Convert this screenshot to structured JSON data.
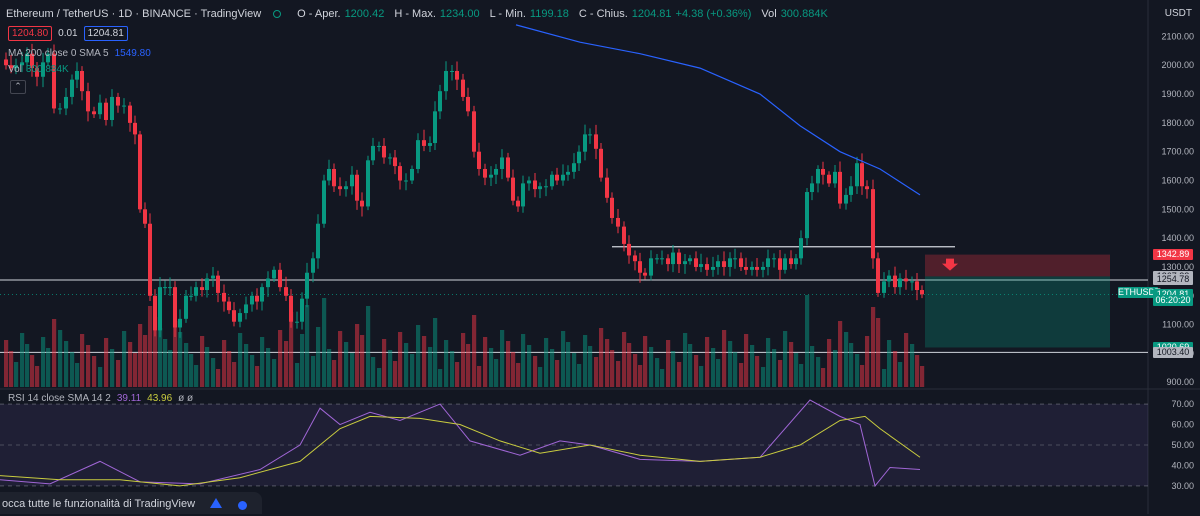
{
  "header": {
    "symbol": "Ethereum / TetherUS · 1D · BINANCE · TradingView",
    "open_label": "O - Aper.",
    "open": "1200.42",
    "high_label": "H - Max.",
    "high": "1234.00",
    "low_label": "L - Min.",
    "low": "1199.18",
    "close_label": "C - Chius.",
    "close": "1204.81",
    "change": "+4.38 (+0.36%)",
    "vol_label": "Vol",
    "vol": "300.884K",
    "bid": "1204.80",
    "spread": "0.01",
    "ask": "1204.81",
    "currency": "USDT"
  },
  "indicators": {
    "ma_label": "MA 200 close 0 SMA 5",
    "ma_value": "1549.80",
    "vol_label": "Vol",
    "vol_value": "300.884K",
    "rsi_label": "RSI 14 close SMA 14 2",
    "rsi_value": "39.11",
    "rsi_sma": "43.96",
    "rsi_extra": "ø ø"
  },
  "price_tags": [
    {
      "label": "1342.89",
      "price": 1342.89,
      "bg": "#f23645",
      "fg": "#ffffff"
    },
    {
      "label": "1267.22",
      "price": 1267.22,
      "bg": "#b2b5be",
      "fg": "#131722"
    },
    {
      "label": "1254.78",
      "price": 1254.78,
      "bg": "#b2b5be",
      "fg": "#131722"
    },
    {
      "label": "ETHUSDT",
      "price": 1210.0,
      "bg": "#089981",
      "fg": "#ffffff",
      "left": true
    },
    {
      "label": "1204.81",
      "price": 1204.81,
      "bg": "#089981",
      "fg": "#ffffff"
    },
    {
      "label": "06:20:20",
      "price": 1184.0,
      "bg": "#089981",
      "fg": "#ffffff"
    },
    {
      "label": "1020.69",
      "price": 1020.69,
      "bg": "#089981",
      "fg": "#ffffff"
    },
    {
      "label": "1003.40",
      "price": 1003.4,
      "bg": "#b2b5be",
      "fg": "#131722"
    }
  ],
  "banner": {
    "text": "occa tutte le funzionalità di TradingView"
  },
  "chart_data": {
    "type": "candlestick",
    "y_ticks": [
      "2100.00",
      "2000.00",
      "1900.00",
      "1800.00",
      "1700.00",
      "1600.00",
      "1500.00",
      "1400.00",
      "1300.00",
      "1200.00",
      "1100.00",
      "1000.00",
      "900.00"
    ],
    "ylim": [
      880,
      2150
    ],
    "rsi_ticks": [
      "70.00",
      "60.00",
      "50.00",
      "40.00",
      "30.00"
    ],
    "rsi_ylim": [
      28,
      72
    ],
    "price_series": [
      [
        0,
        2020
      ],
      [
        6,
        2000
      ],
      [
        11,
        1990
      ],
      [
        16,
        2000
      ],
      [
        22,
        2010
      ],
      [
        27,
        2040
      ],
      [
        32,
        1990
      ],
      [
        37,
        1960
      ],
      [
        43,
        2010
      ],
      [
        48,
        2040
      ],
      [
        54,
        1850
      ],
      [
        60,
        1850
      ],
      [
        66,
        1890
      ],
      [
        72,
        1950
      ],
      [
        77,
        1980
      ],
      [
        82,
        1910
      ],
      [
        88,
        1840
      ],
      [
        94,
        1830
      ],
      [
        100,
        1870
      ],
      [
        106,
        1810
      ],
      [
        112,
        1890
      ],
      [
        118,
        1860
      ],
      [
        124,
        1860
      ],
      [
        130,
        1800
      ],
      [
        135,
        1760
      ],
      [
        140,
        1500
      ],
      [
        145,
        1450
      ],
      [
        150,
        1200
      ],
      [
        155,
        1080
      ],
      [
        160,
        1230
      ],
      [
        165,
        1230
      ],
      [
        170,
        1230
      ],
      [
        175,
        1090
      ],
      [
        180,
        1120
      ],
      [
        186,
        1200
      ],
      [
        191,
        1200
      ],
      [
        196,
        1230
      ],
      [
        202,
        1220
      ],
      [
        207,
        1260
      ],
      [
        213,
        1270
      ],
      [
        218,
        1210
      ],
      [
        224,
        1180
      ],
      [
        229,
        1150
      ],
      [
        234,
        1110
      ],
      [
        240,
        1140
      ],
      [
        246,
        1170
      ],
      [
        252,
        1200
      ],
      [
        257,
        1180
      ],
      [
        262,
        1230
      ],
      [
        268,
        1260
      ],
      [
        274,
        1290
      ],
      [
        280,
        1230
      ],
      [
        286,
        1200
      ],
      [
        291,
        1110
      ],
      [
        297,
        1110
      ],
      [
        302,
        1190
      ],
      [
        307,
        1280
      ],
      [
        313,
        1330
      ],
      [
        318,
        1450
      ],
      [
        324,
        1600
      ],
      [
        329,
        1640
      ],
      [
        334,
        1580
      ],
      [
        340,
        1570
      ],
      [
        346,
        1580
      ],
      [
        352,
        1620
      ],
      [
        357,
        1530
      ],
      [
        362,
        1510
      ],
      [
        368,
        1670
      ],
      [
        373,
        1720
      ],
      [
        379,
        1720
      ],
      [
        384,
        1680
      ],
      [
        390,
        1680
      ],
      [
        395,
        1650
      ],
      [
        400,
        1600
      ],
      [
        406,
        1600
      ],
      [
        412,
        1640
      ],
      [
        418,
        1740
      ],
      [
        424,
        1720
      ],
      [
        430,
        1730
      ],
      [
        435,
        1840
      ],
      [
        440,
        1910
      ],
      [
        446,
        1980
      ],
      [
        452,
        1980
      ],
      [
        457,
        1950
      ],
      [
        463,
        1890
      ],
      [
        468,
        1840
      ],
      [
        474,
        1700
      ],
      [
        479,
        1640
      ],
      [
        485,
        1610
      ],
      [
        491,
        1620
      ],
      [
        496,
        1640
      ],
      [
        502,
        1680
      ],
      [
        508,
        1610
      ],
      [
        513,
        1530
      ],
      [
        518,
        1510
      ],
      [
        523,
        1590
      ],
      [
        529,
        1600
      ],
      [
        535,
        1570
      ],
      [
        540,
        1580
      ],
      [
        546,
        1580
      ],
      [
        552,
        1620
      ],
      [
        557,
        1600
      ],
      [
        563,
        1620
      ],
      [
        568,
        1630
      ],
      [
        574,
        1660
      ],
      [
        579,
        1700
      ],
      [
        585,
        1760
      ],
      [
        590,
        1760
      ],
      [
        596,
        1710
      ],
      [
        601,
        1610
      ],
      [
        607,
        1540
      ],
      [
        612,
        1470
      ],
      [
        618,
        1440
      ],
      [
        624,
        1380
      ],
      [
        629,
        1340
      ],
      [
        635,
        1320
      ],
      [
        640,
        1280
      ],
      [
        645,
        1270
      ],
      [
        651,
        1330
      ],
      [
        657,
        1330
      ],
      [
        662,
        1330
      ],
      [
        668,
        1310
      ],
      [
        673,
        1350
      ],
      [
        679,
        1310
      ],
      [
        685,
        1320
      ],
      [
        690,
        1330
      ],
      [
        696,
        1300
      ],
      [
        701,
        1310
      ],
      [
        707,
        1290
      ],
      [
        713,
        1300
      ],
      [
        718,
        1320
      ],
      [
        724,
        1300
      ],
      [
        730,
        1330
      ],
      [
        735,
        1330
      ],
      [
        741,
        1300
      ],
      [
        746,
        1290
      ],
      [
        752,
        1300
      ],
      [
        757,
        1290
      ],
      [
        763,
        1300
      ],
      [
        768,
        1330
      ],
      [
        774,
        1330
      ],
      [
        780,
        1290
      ],
      [
        785,
        1330
      ],
      [
        791,
        1310
      ],
      [
        796,
        1330
      ],
      [
        801,
        1400
      ],
      [
        807,
        1560
      ],
      [
        812,
        1590
      ],
      [
        818,
        1640
      ],
      [
        823,
        1620
      ],
      [
        829,
        1590
      ],
      [
        835,
        1630
      ],
      [
        840,
        1520
      ],
      [
        846,
        1550
      ],
      [
        851,
        1580
      ],
      [
        857,
        1660
      ],
      [
        862,
        1580
      ],
      [
        867,
        1570
      ],
      [
        873,
        1330
      ],
      [
        878,
        1210
      ],
      [
        884,
        1250
      ],
      [
        889,
        1270
      ],
      [
        895,
        1230
      ],
      [
        900,
        1260
      ],
      [
        906,
        1250
      ],
      [
        912,
        1250
      ],
      [
        917,
        1220
      ],
      [
        922,
        1205
      ]
    ],
    "ma200_series": [
      [
        516,
        2140
      ],
      [
        580,
        2080
      ],
      [
        640,
        2040
      ],
      [
        700,
        1990
      ],
      [
        760,
        1900
      ],
      [
        800,
        1790
      ],
      [
        840,
        1700
      ],
      [
        880,
        1640
      ],
      [
        920,
        1550
      ]
    ],
    "rsi_series": [
      [
        0,
        33
      ],
      [
        50,
        31
      ],
      [
        100,
        42
      ],
      [
        140,
        32
      ],
      [
        200,
        31
      ],
      [
        260,
        38
      ],
      [
        300,
        50
      ],
      [
        320,
        68
      ],
      [
        340,
        60
      ],
      [
        370,
        66
      ],
      [
        400,
        62
      ],
      [
        440,
        70
      ],
      [
        470,
        52
      ],
      [
        520,
        45
      ],
      [
        560,
        52
      ],
      [
        590,
        50
      ],
      [
        640,
        43
      ],
      [
        700,
        42
      ],
      [
        760,
        44
      ],
      [
        810,
        72
      ],
      [
        840,
        64
      ],
      [
        860,
        60
      ],
      [
        875,
        30
      ],
      [
        890,
        39
      ],
      [
        920,
        38
      ]
    ],
    "rsi_sma_series": [
      [
        0,
        35
      ],
      [
        60,
        33
      ],
      [
        120,
        33
      ],
      [
        180,
        30
      ],
      [
        240,
        34
      ],
      [
        300,
        42
      ],
      [
        340,
        58
      ],
      [
        370,
        64
      ],
      [
        420,
        63
      ],
      [
        460,
        60
      ],
      [
        500,
        52
      ],
      [
        540,
        46
      ],
      [
        590,
        50
      ],
      [
        640,
        45
      ],
      [
        700,
        42
      ],
      [
        760,
        44
      ],
      [
        800,
        50
      ],
      [
        840,
        62
      ],
      [
        865,
        64
      ],
      [
        880,
        58
      ],
      [
        920,
        44
      ]
    ],
    "support_levels": [
      1254.78,
      1003.4
    ],
    "resistance_line": {
      "x_from": 612,
      "x_to": 955,
      "price": 1370
    },
    "short_position": {
      "x_from": 925,
      "x_to": 1110,
      "entry": 1267.22,
      "stop": 1342.89,
      "target": 1020.69
    }
  }
}
